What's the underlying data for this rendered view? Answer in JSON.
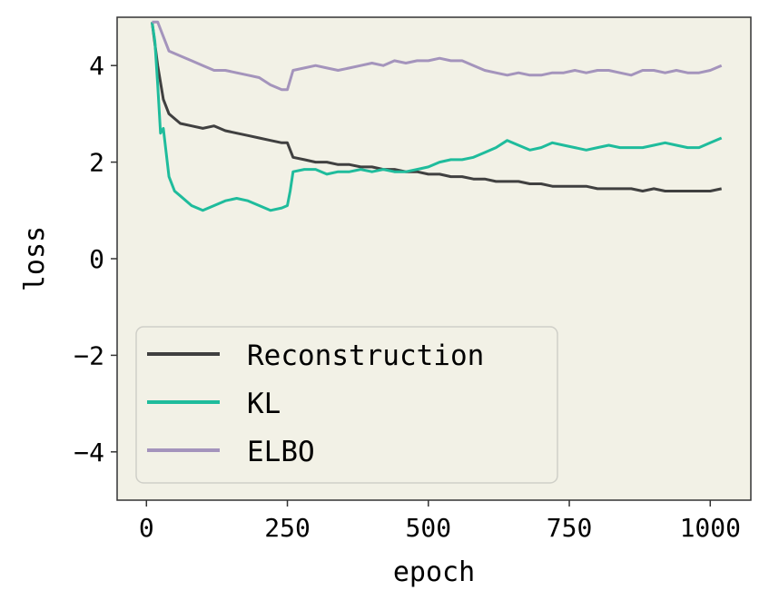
{
  "chart_data": {
    "type": "line",
    "title": "",
    "xlabel": "epoch",
    "ylabel": "loss",
    "xlim": [
      -52,
      1072
    ],
    "ylim": [
      -5,
      5
    ],
    "xticks": [
      0,
      250,
      500,
      750,
      1000
    ],
    "xtick_labels": [
      "0",
      "250",
      "500",
      "750",
      "1000"
    ],
    "yticks": [
      -4,
      -2,
      0,
      2,
      4
    ],
    "ytick_labels": [
      "−4",
      "−2",
      "0",
      "2",
      "4"
    ],
    "grid": false,
    "legend_position": "lower-left",
    "background_color": "#f2f1e6",
    "series": [
      {
        "name": "Reconstruction",
        "color": "#404040",
        "x": [
          10,
          20,
          30,
          40,
          60,
          80,
          100,
          120,
          140,
          160,
          180,
          200,
          220,
          240,
          250,
          260,
          280,
          300,
          320,
          340,
          360,
          380,
          400,
          420,
          440,
          460,
          480,
          500,
          520,
          540,
          560,
          580,
          600,
          620,
          640,
          660,
          680,
          700,
          720,
          740,
          760,
          780,
          800,
          820,
          840,
          860,
          880,
          900,
          920,
          940,
          960,
          980,
          1000,
          1020
        ],
        "values": [
          4.9,
          4.0,
          3.3,
          3.0,
          2.8,
          2.75,
          2.7,
          2.75,
          2.65,
          2.6,
          2.55,
          2.5,
          2.45,
          2.4,
          2.4,
          2.1,
          2.05,
          2.0,
          2.0,
          1.95,
          1.95,
          1.9,
          1.9,
          1.85,
          1.85,
          1.8,
          1.8,
          1.75,
          1.75,
          1.7,
          1.7,
          1.65,
          1.65,
          1.6,
          1.6,
          1.6,
          1.55,
          1.55,
          1.5,
          1.5,
          1.5,
          1.5,
          1.45,
          1.45,
          1.45,
          1.45,
          1.4,
          1.45,
          1.4,
          1.4,
          1.4,
          1.4,
          1.4,
          1.45
        ]
      },
      {
        "name": "KL",
        "color": "#1fbc9c",
        "x": [
          10,
          15,
          20,
          25,
          30,
          35,
          40,
          50,
          60,
          80,
          100,
          120,
          140,
          160,
          180,
          200,
          220,
          240,
          250,
          255,
          260,
          280,
          300,
          320,
          340,
          360,
          380,
          400,
          420,
          440,
          460,
          480,
          500,
          520,
          540,
          560,
          580,
          600,
          620,
          640,
          660,
          680,
          700,
          720,
          740,
          760,
          780,
          800,
          820,
          840,
          860,
          880,
          900,
          920,
          940,
          960,
          980,
          1000,
          1020
        ],
        "values": [
          4.9,
          4.5,
          3.6,
          2.6,
          2.7,
          2.2,
          1.7,
          1.4,
          1.3,
          1.1,
          1.0,
          1.1,
          1.2,
          1.25,
          1.2,
          1.1,
          1.0,
          1.05,
          1.1,
          1.4,
          1.8,
          1.85,
          1.85,
          1.75,
          1.8,
          1.8,
          1.85,
          1.8,
          1.85,
          1.8,
          1.8,
          1.85,
          1.9,
          2.0,
          2.05,
          2.05,
          2.1,
          2.2,
          2.3,
          2.45,
          2.35,
          2.25,
          2.3,
          2.4,
          2.35,
          2.3,
          2.25,
          2.3,
          2.35,
          2.3,
          2.3,
          2.3,
          2.35,
          2.4,
          2.35,
          2.3,
          2.3,
          2.4,
          2.5
        ]
      },
      {
        "name": "ELBO",
        "color": "#a494bc",
        "x": [
          10,
          20,
          30,
          40,
          60,
          80,
          100,
          120,
          140,
          160,
          180,
          200,
          220,
          240,
          250,
          260,
          280,
          300,
          320,
          340,
          360,
          380,
          400,
          420,
          440,
          460,
          480,
          500,
          520,
          540,
          560,
          580,
          600,
          620,
          640,
          660,
          680,
          700,
          720,
          740,
          760,
          780,
          800,
          820,
          840,
          860,
          880,
          900,
          920,
          940,
          960,
          980,
          1000,
          1020
        ],
        "values": [
          4.9,
          4.9,
          4.6,
          4.3,
          4.2,
          4.1,
          4.0,
          3.9,
          3.9,
          3.85,
          3.8,
          3.75,
          3.6,
          3.5,
          3.5,
          3.9,
          3.95,
          4.0,
          3.95,
          3.9,
          3.95,
          4.0,
          4.05,
          4.0,
          4.1,
          4.05,
          4.1,
          4.1,
          4.15,
          4.1,
          4.1,
          4.0,
          3.9,
          3.85,
          3.8,
          3.85,
          3.8,
          3.8,
          3.85,
          3.85,
          3.9,
          3.85,
          3.9,
          3.9,
          3.85,
          3.8,
          3.9,
          3.9,
          3.85,
          3.9,
          3.85,
          3.85,
          3.9,
          4.0
        ]
      }
    ]
  }
}
